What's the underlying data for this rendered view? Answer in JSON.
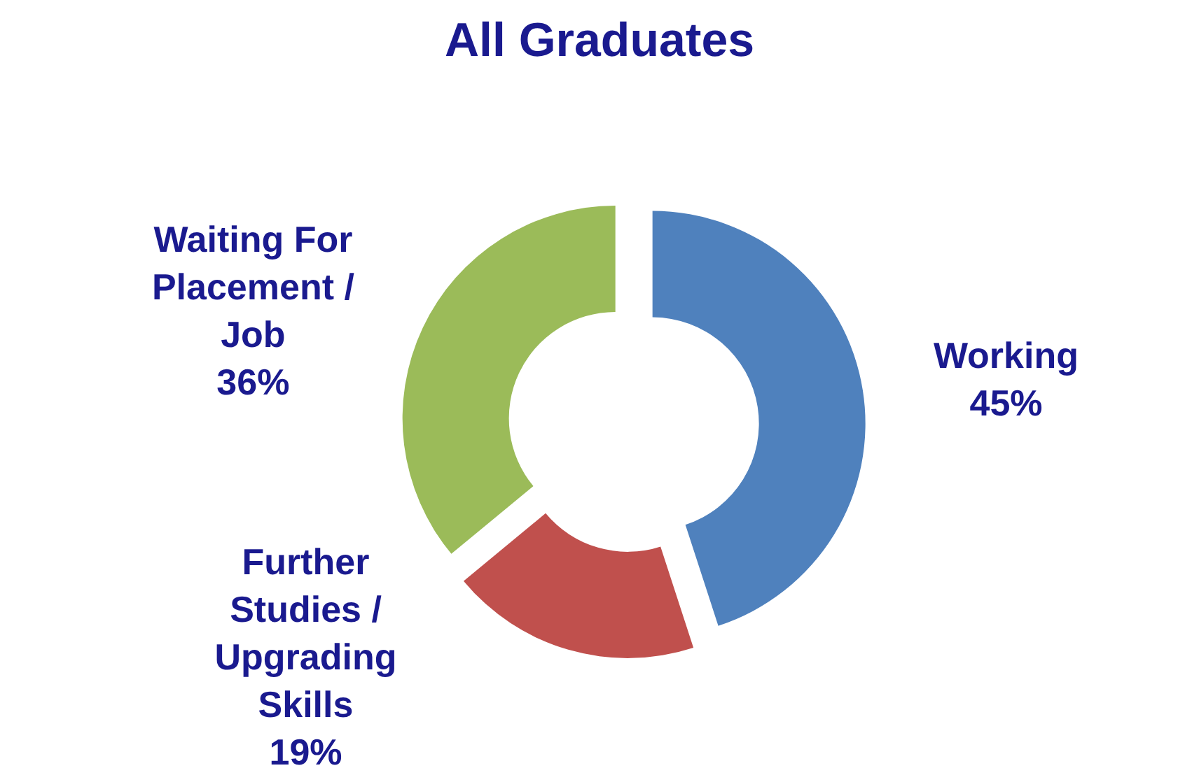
{
  "chart_data": {
    "type": "donut",
    "title": "All Graduates",
    "categories": [
      "Working",
      "Further Studies / Upgrading Skills",
      "Waiting For Placement / Job"
    ],
    "values": [
      45,
      19,
      36
    ],
    "colors": [
      "#4f81bd",
      "#c0504d",
      "#9bbb59"
    ],
    "value_labels": [
      "45%",
      "19%",
      "36%"
    ]
  }
}
